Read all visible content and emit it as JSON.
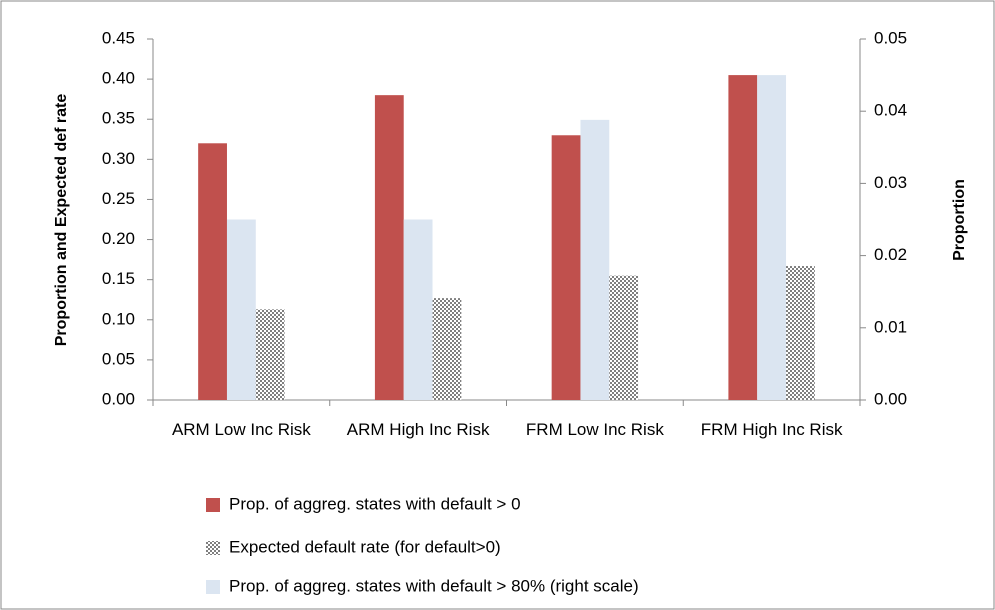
{
  "chart_data": {
    "type": "bar",
    "y_label": "Proportion and Expected def rate",
    "y2_label": "Proportion",
    "categories": [
      "ARM Low Inc Risk",
      "ARM High Inc Risk",
      "FRM Low Inc Risk",
      "FRM High Inc Risk"
    ],
    "series": [
      {
        "name": "Prop. of aggreg. states with default > 0",
        "color": "#c0504d",
        "values": [
          0.32,
          0.38,
          0.33,
          0.405
        ]
      },
      {
        "name": "Expected default rate (for default>0)",
        "color": "#7f7f7f",
        "hatch": true,
        "values": [
          0.113,
          0.127,
          0.155,
          0.167
        ]
      },
      {
        "name": "Prop. of aggreg. states with default > 80%  (right scale)",
        "color": "#dbe5f1",
        "axis": "y2",
        "values": [
          0.025,
          0.025,
          0.0388,
          0.045
        ]
      }
    ],
    "ylim": [
      0,
      0.45
    ],
    "yticks": [
      {
        "value": 0,
        "label": "0.00"
      },
      {
        "value": 0.05,
        "label": "0.05"
      },
      {
        "value": 0.1,
        "label": "0.10"
      },
      {
        "value": 0.15,
        "label": "0.15"
      },
      {
        "value": 0.2,
        "label": "0.20"
      },
      {
        "value": 0.25,
        "label": "0.25"
      },
      {
        "value": 0.3,
        "label": "0.30"
      },
      {
        "value": 0.35,
        "label": "0.35"
      },
      {
        "value": 0.4,
        "label": "0.40"
      },
      {
        "value": 0.45,
        "label": "0.45"
      }
    ],
    "y2lim": [
      0,
      0.05
    ],
    "y2ticks": [
      {
        "value": 0,
        "label": "0.00"
      },
      {
        "value": 0.01,
        "label": "0.01"
      },
      {
        "value": 0.02,
        "label": "0.02"
      },
      {
        "value": 0.03,
        "label": "0.03"
      },
      {
        "value": 0.04,
        "label": "0.04"
      },
      {
        "value": 0.05,
        "label": "0.05"
      }
    ],
    "grid": false
  }
}
